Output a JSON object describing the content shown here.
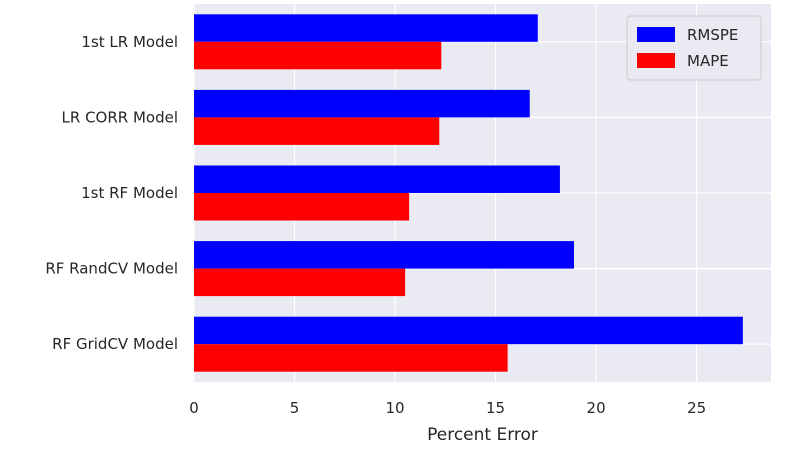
{
  "chart_data": {
    "type": "bar",
    "orientation": "horizontal",
    "categories": [
      "1st LR Model",
      "LR CORR Model",
      "1st RF Model",
      "RF RandCV Model",
      "RF GridCV Model"
    ],
    "series": [
      {
        "name": "RMSPE",
        "color": "#0000ff",
        "values": [
          17.1,
          16.7,
          18.2,
          18.9,
          27.3
        ]
      },
      {
        "name": "MAPE",
        "color": "#ff0000",
        "values": [
          12.3,
          12.2,
          10.7,
          10.5,
          15.6
        ]
      }
    ],
    "xlabel": "Percent Error",
    "ylabel": "",
    "xlim": [
      0,
      28.7
    ],
    "xticks": [
      0,
      5,
      10,
      15,
      20,
      25
    ],
    "grid": true,
    "legend_position": "top-right",
    "plot_background": "#eaeaf2"
  }
}
